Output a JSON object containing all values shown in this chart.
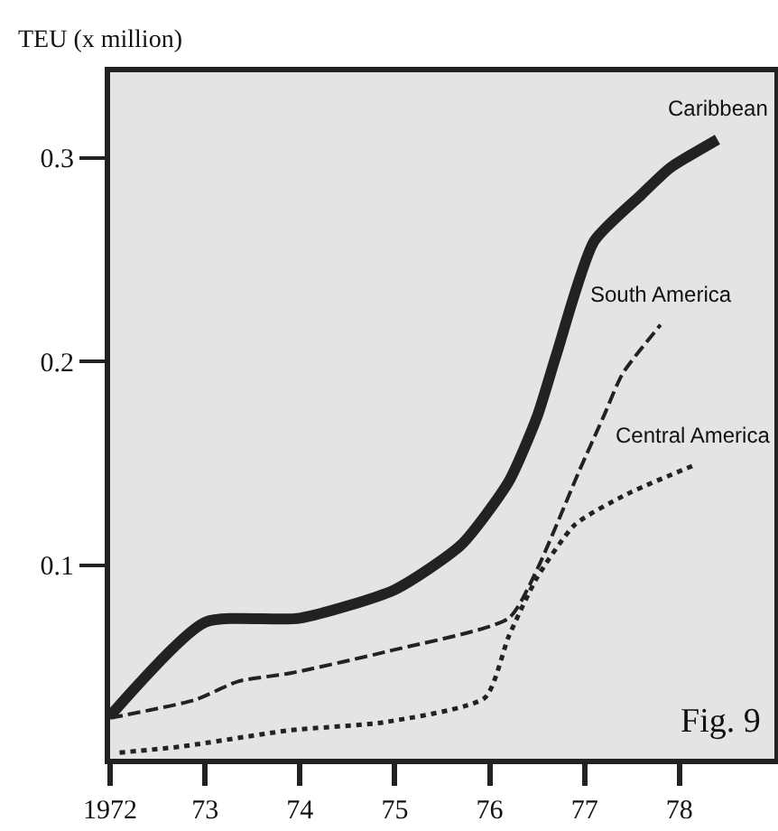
{
  "chart_data": {
    "type": "line",
    "ylabel": "TEU (x million)",
    "annotations": [
      "Fig. 9"
    ],
    "xlim": [
      1972,
      1979
    ],
    "ylim": [
      0.005,
      0.342
    ],
    "xticks": [
      1972,
      {
        "value": 1973,
        "label": "73"
      },
      {
        "value": 1974,
        "label": "74"
      },
      {
        "value": 1975,
        "label": "75"
      },
      {
        "value": 1976,
        "label": "76"
      },
      {
        "value": 1977,
        "label": "77"
      },
      {
        "value": 1978,
        "label": "78"
      }
    ],
    "yticks": [
      0.1,
      0.2,
      0.3
    ],
    "grid": false,
    "legend": false,
    "marker": "none",
    "series": [
      {
        "name": "Caribbean",
        "color": "#222222",
        "line_style": "solid",
        "x": [
          1972,
          1973,
          1974,
          1975,
          1975.7,
          1976.2,
          1976.5,
          1976.7,
          1977.1,
          1977.6,
          1977.9,
          1978.4
        ],
        "values": [
          0.026,
          0.072,
          0.074,
          0.088,
          0.11,
          0.141,
          0.173,
          0.203,
          0.259,
          0.282,
          0.295,
          0.309
        ]
      },
      {
        "name": "South America",
        "color": "#222222",
        "line_style": "dashed",
        "x": [
          1972,
          1972.9,
          1973.35,
          1973.9,
          1974.95,
          1976.2,
          1976.5,
          1976.95,
          1977.2,
          1977.4,
          1977.8
        ],
        "values": [
          0.025,
          0.034,
          0.043,
          0.047,
          0.058,
          0.074,
          0.098,
          0.147,
          0.173,
          0.194,
          0.218
        ]
      },
      {
        "name": "Central America",
        "color": "#222222",
        "line_style": "dotted",
        "x": [
          1972.1,
          1972.75,
          1973.9,
          1974.9,
          1975.95,
          1976.2,
          1976.5,
          1976.9,
          1977.45,
          1978.15
        ],
        "values": [
          0.008,
          0.011,
          0.019,
          0.023,
          0.035,
          0.065,
          0.094,
          0.12,
          0.135,
          0.149
        ]
      }
    ]
  }
}
